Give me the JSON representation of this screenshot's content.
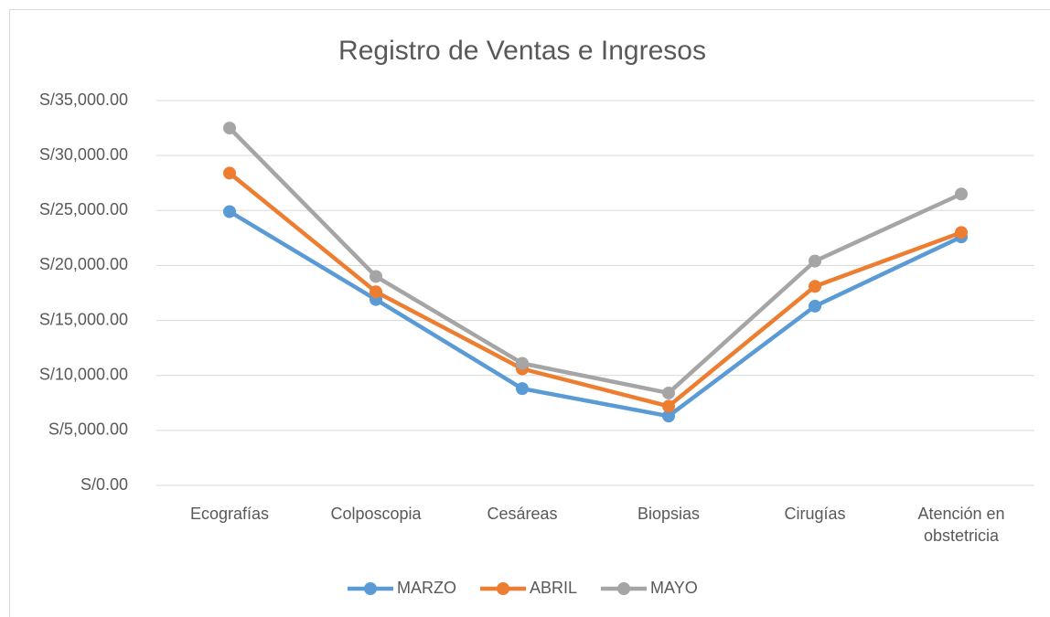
{
  "chart_data": {
    "type": "line",
    "title": "Registro de Ventas e Ingresos",
    "categories": [
      "Ecografías",
      "Colposcopia",
      "Cesáreas",
      "Biopsias",
      "Cirugías",
      "Atención en obstetricia"
    ],
    "series": [
      {
        "name": "MARZO",
        "color": "#5b9bd5",
        "values": [
          24900,
          16900,
          8800,
          6300,
          16300,
          22600
        ]
      },
      {
        "name": "ABRIL",
        "color": "#ed7d31",
        "values": [
          28400,
          17600,
          10600,
          7200,
          18100,
          23000
        ]
      },
      {
        "name": "MAYO",
        "color": "#a5a5a5",
        "values": [
          32500,
          19000,
          11100,
          8400,
          20400,
          26500
        ]
      }
    ],
    "ylim": [
      0,
      35000
    ],
    "yticks": [
      {
        "value": 0,
        "label": "S/0.00"
      },
      {
        "value": 5000,
        "label": "S/5,000.00"
      },
      {
        "value": 10000,
        "label": "S/10,000.00"
      },
      {
        "value": 15000,
        "label": "S/15,000.00"
      },
      {
        "value": 20000,
        "label": "S/20,000.00"
      },
      {
        "value": 25000,
        "label": "S/25,000.00"
      },
      {
        "value": 30000,
        "label": "S/30,000.00"
      },
      {
        "value": 35000,
        "label": "S/35,000.00"
      }
    ],
    "grid": true,
    "legend": "bottom"
  }
}
